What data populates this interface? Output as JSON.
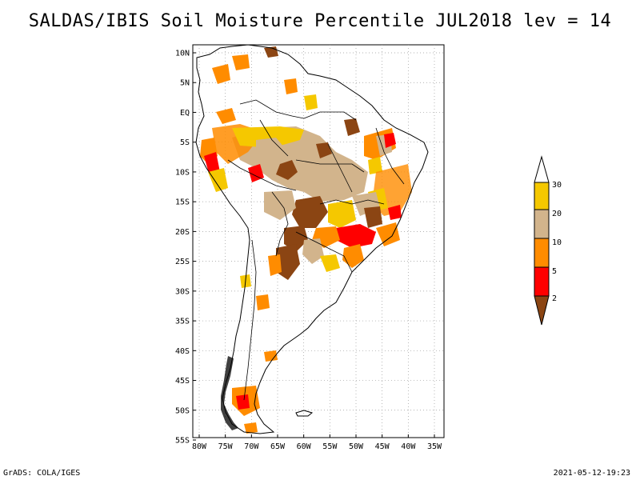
{
  "title": "SALDAS/IBIS Soil Moisture Percentile JUL2018 lev = 14",
  "map": {
    "lat_labels": [
      "10N",
      "5N",
      "EQ",
      "5S",
      "10S",
      "15S",
      "20S",
      "25S",
      "30S",
      "35S",
      "40S",
      "45S",
      "50S",
      "55S"
    ],
    "lon_labels": [
      "80W",
      "75W",
      "70W",
      "65W",
      "60W",
      "55W",
      "50W",
      "45W",
      "40W",
      "35W"
    ],
    "lat_range": [
      10,
      -55
    ],
    "lon_range": [
      -80,
      -35
    ]
  },
  "legend": {
    "labels": [
      "30",
      "20",
      "10",
      "5",
      "2"
    ],
    "colors": {
      "above_30": "#ffffff",
      "20_30": "#f5c800",
      "10_20": "#d2b48c",
      "5_10": "#ff8c00",
      "2_5": "#ff0000",
      "below_2": "#8b4513"
    }
  },
  "footer": {
    "left": "GrADS: COLA/IGES",
    "right": "2021-05-12-19:23"
  }
}
